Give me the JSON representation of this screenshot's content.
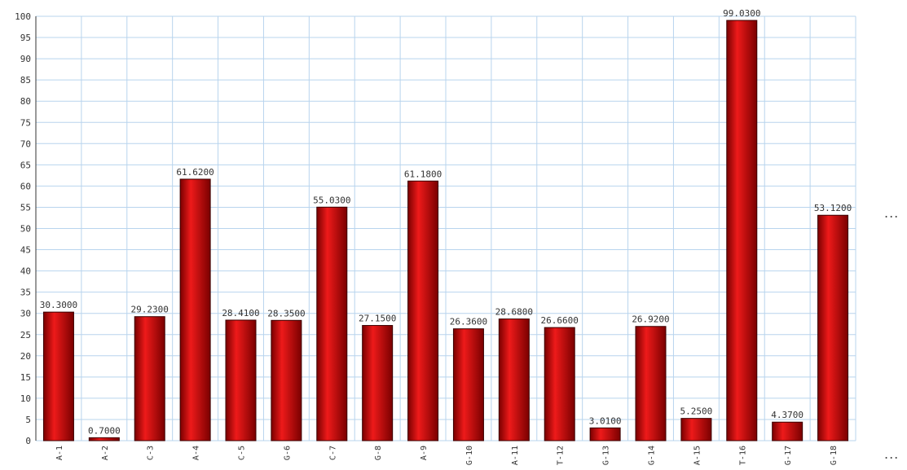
{
  "chart_data": {
    "type": "bar",
    "categories": [
      "A-1",
      "A-2",
      "C-3",
      "A-4",
      "C-5",
      "G-6",
      "C-7",
      "G-8",
      "A-9",
      "G-10",
      "A-11",
      "T-12",
      "G-13",
      "G-14",
      "A-15",
      "T-16",
      "G-17",
      "G-18"
    ],
    "values": [
      30.3,
      0.7,
      29.23,
      61.62,
      28.41,
      28.35,
      55.03,
      27.15,
      61.18,
      26.36,
      28.68,
      26.66,
      3.01,
      26.92,
      5.25,
      99.03,
      4.37,
      53.12
    ],
    "value_labels": [
      "30.3000",
      "0.7000",
      "29.2300",
      "61.6200",
      "28.4100",
      "28.3500",
      "55.0300",
      "27.1500",
      "61.1800",
      "26.3600",
      "28.6800",
      "26.6600",
      "3.0100",
      "26.9200",
      "5.2500",
      "99.0300",
      "4.3700",
      "53.1200"
    ],
    "ylim": [
      0,
      100
    ],
    "y_ticks": [
      0,
      5,
      10,
      15,
      20,
      25,
      30,
      35,
      40,
      45,
      50,
      55,
      60,
      65,
      70,
      75,
      80,
      85,
      90,
      95,
      100
    ],
    "grid": true,
    "title": "",
    "xlabel": "",
    "ylabel": ""
  },
  "colors": {
    "bar_fill": "#cc0000",
    "bar_highlight": "#ee1a1a",
    "bar_shadow": "#7a0000",
    "bar_edge": "#3a0000",
    "grid": "#b8d4ee",
    "axis": "#333333"
  },
  "more_indicator": "..."
}
